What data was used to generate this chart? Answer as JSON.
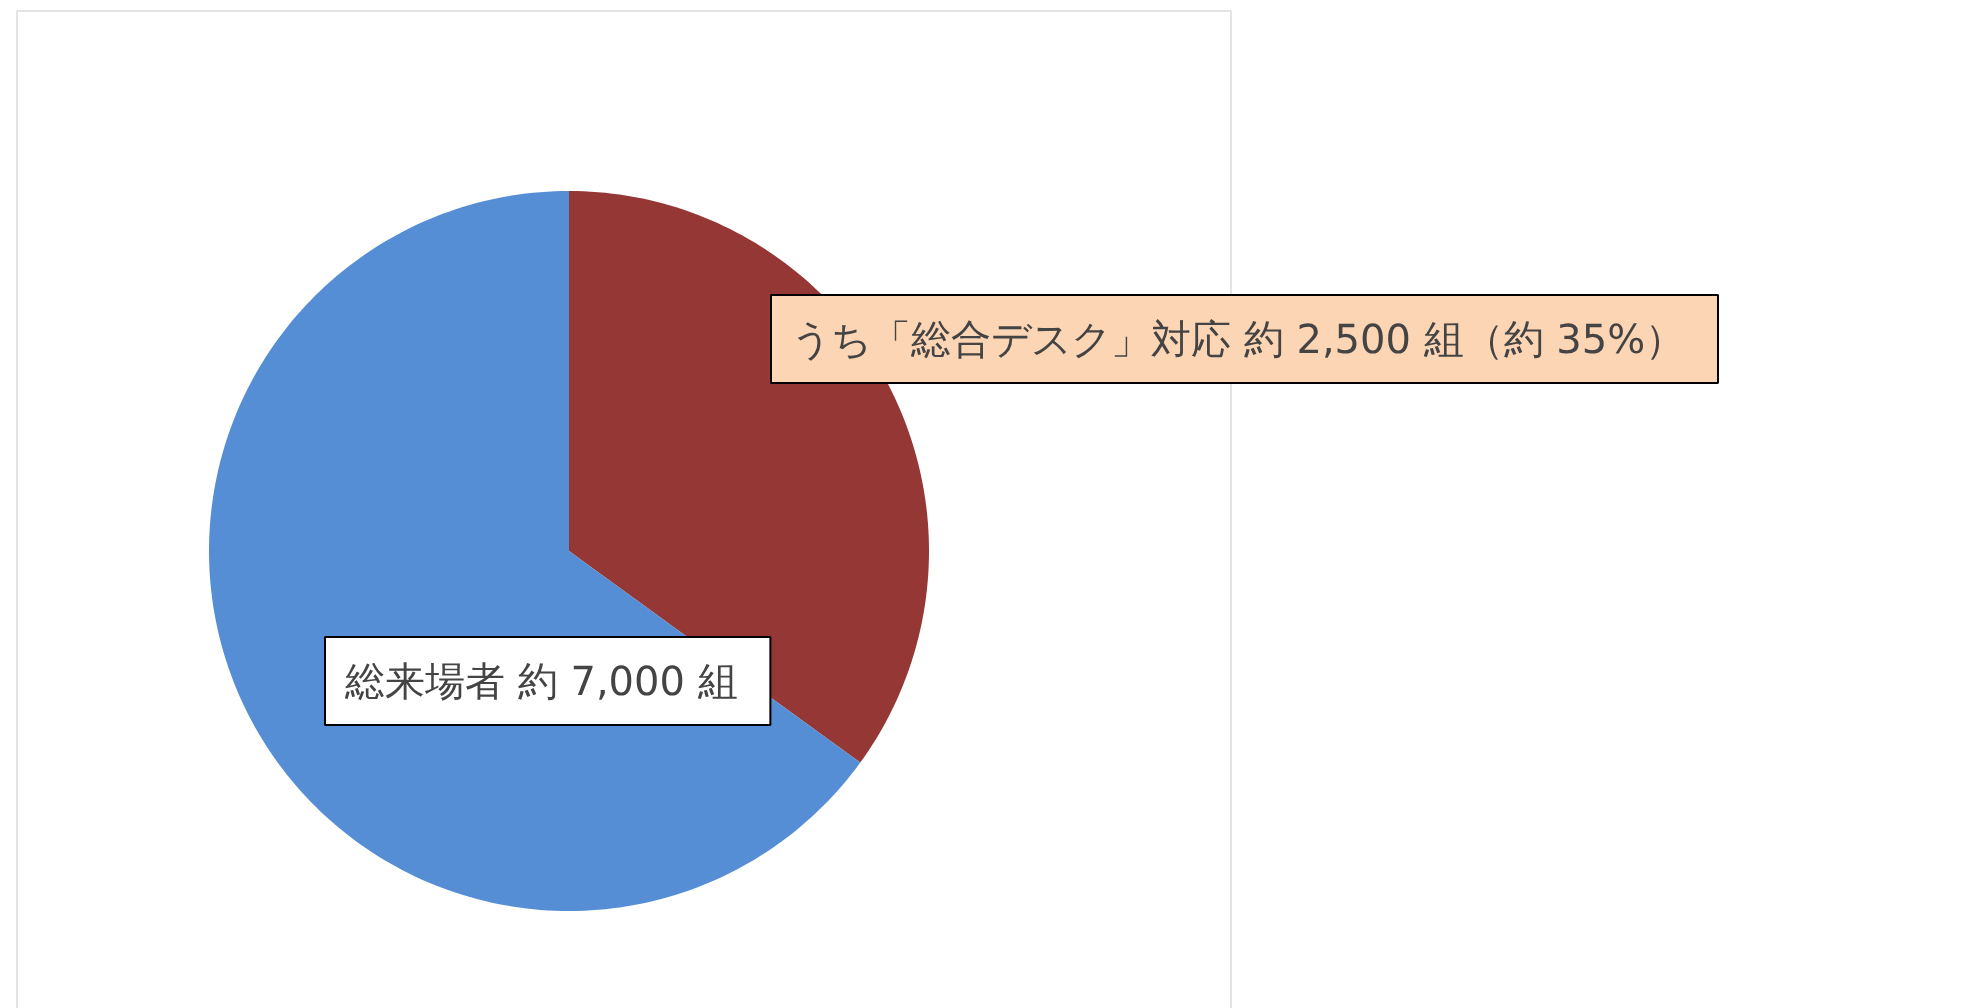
{
  "chart_data": {
    "type": "pie",
    "categories": [
      "うち「総合デスク」対応  約 2,500 組（約 35%）",
      "総来場者  約 7,000 組"
    ],
    "values": [
      35,
      65
    ],
    "colors": [
      "#953735",
      "#558ed5"
    ]
  }
}
